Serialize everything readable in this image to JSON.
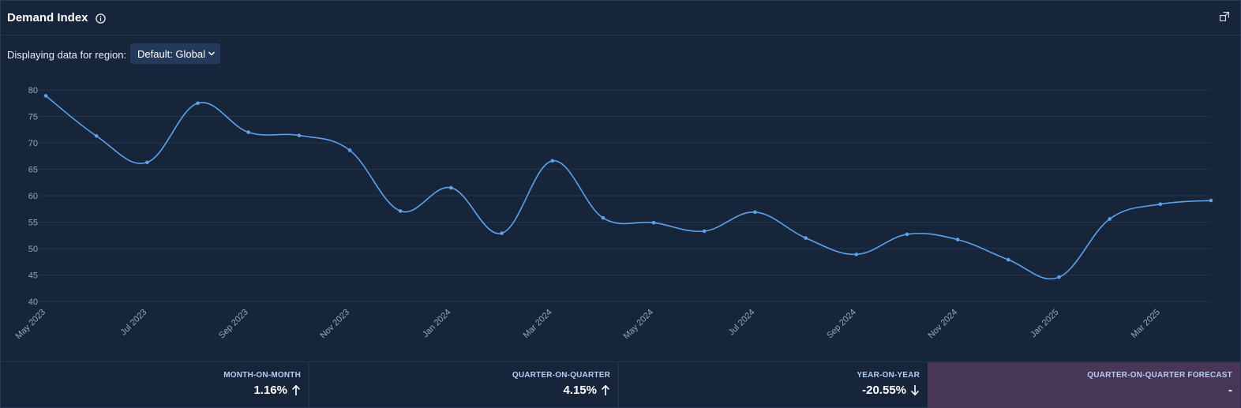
{
  "header": {
    "title": "Demand Index",
    "info_icon": "info-icon",
    "expand_icon": "expand-icon"
  },
  "region": {
    "label": "Displaying data for region:",
    "selected": "Default: Global",
    "icon": "chevron-down-icon"
  },
  "colors": {
    "line": "#5ea2ea",
    "background": "#17253b",
    "grid": "#25354f",
    "forecast_bg": "#473656"
  },
  "chart_data": {
    "type": "line",
    "title": "",
    "xlabel": "",
    "ylabel": "",
    "ylim": [
      40,
      80
    ],
    "yticks": [
      "80",
      "75",
      "70",
      "65",
      "60",
      "55",
      "50",
      "45",
      "40"
    ],
    "x": [
      "May 2023",
      "Jun 2023",
      "Jul 2023",
      "Aug 2023",
      "Sep 2023",
      "Oct 2023",
      "Nov 2023",
      "Dec 2023",
      "Jan 2024",
      "Feb 2024",
      "Mar 2024",
      "Apr 2024",
      "May 2024",
      "Jun 2024",
      "Jul 2024",
      "Aug 2024",
      "Sep 2024",
      "Oct 2024",
      "Nov 2024",
      "Dec 2024",
      "Jan 2025",
      "Feb 2025",
      "Mar 2025",
      "Apr 2025"
    ],
    "xtick_labels": [
      "May 2023",
      "",
      "Jul 2023",
      "",
      "Sep 2023",
      "",
      "Nov 2023",
      "",
      "Jan 2024",
      "",
      "Mar 2024",
      "",
      "May 2024",
      "",
      "Jul 2024",
      "",
      "Sep 2024",
      "",
      "Nov 2024",
      "",
      "Jan 2025",
      "",
      "Mar 2025",
      ""
    ],
    "values": [
      78.9,
      71.3,
      66.3,
      77.5,
      72.0,
      71.4,
      68.6,
      57.1,
      61.5,
      52.9,
      66.6,
      55.8,
      54.9,
      53.3,
      56.9,
      52.0,
      48.9,
      52.7,
      51.7,
      47.9,
      44.6,
      55.6,
      58.4,
      59.1
    ],
    "grid": true,
    "legend": "none"
  },
  "stats": [
    {
      "label": "MONTH-ON-MONTH",
      "value": "1.16%",
      "direction": "up",
      "icon": "arrow-up-icon"
    },
    {
      "label": "QUARTER-ON-QUARTER",
      "value": "4.15%",
      "direction": "up",
      "icon": "arrow-up-icon"
    },
    {
      "label": "YEAR-ON-YEAR",
      "value": "-20.55%",
      "direction": "down",
      "icon": "arrow-down-icon"
    },
    {
      "label": "QUARTER-ON-QUARTER FORECAST",
      "value": "-",
      "direction": "none",
      "icon": ""
    }
  ]
}
